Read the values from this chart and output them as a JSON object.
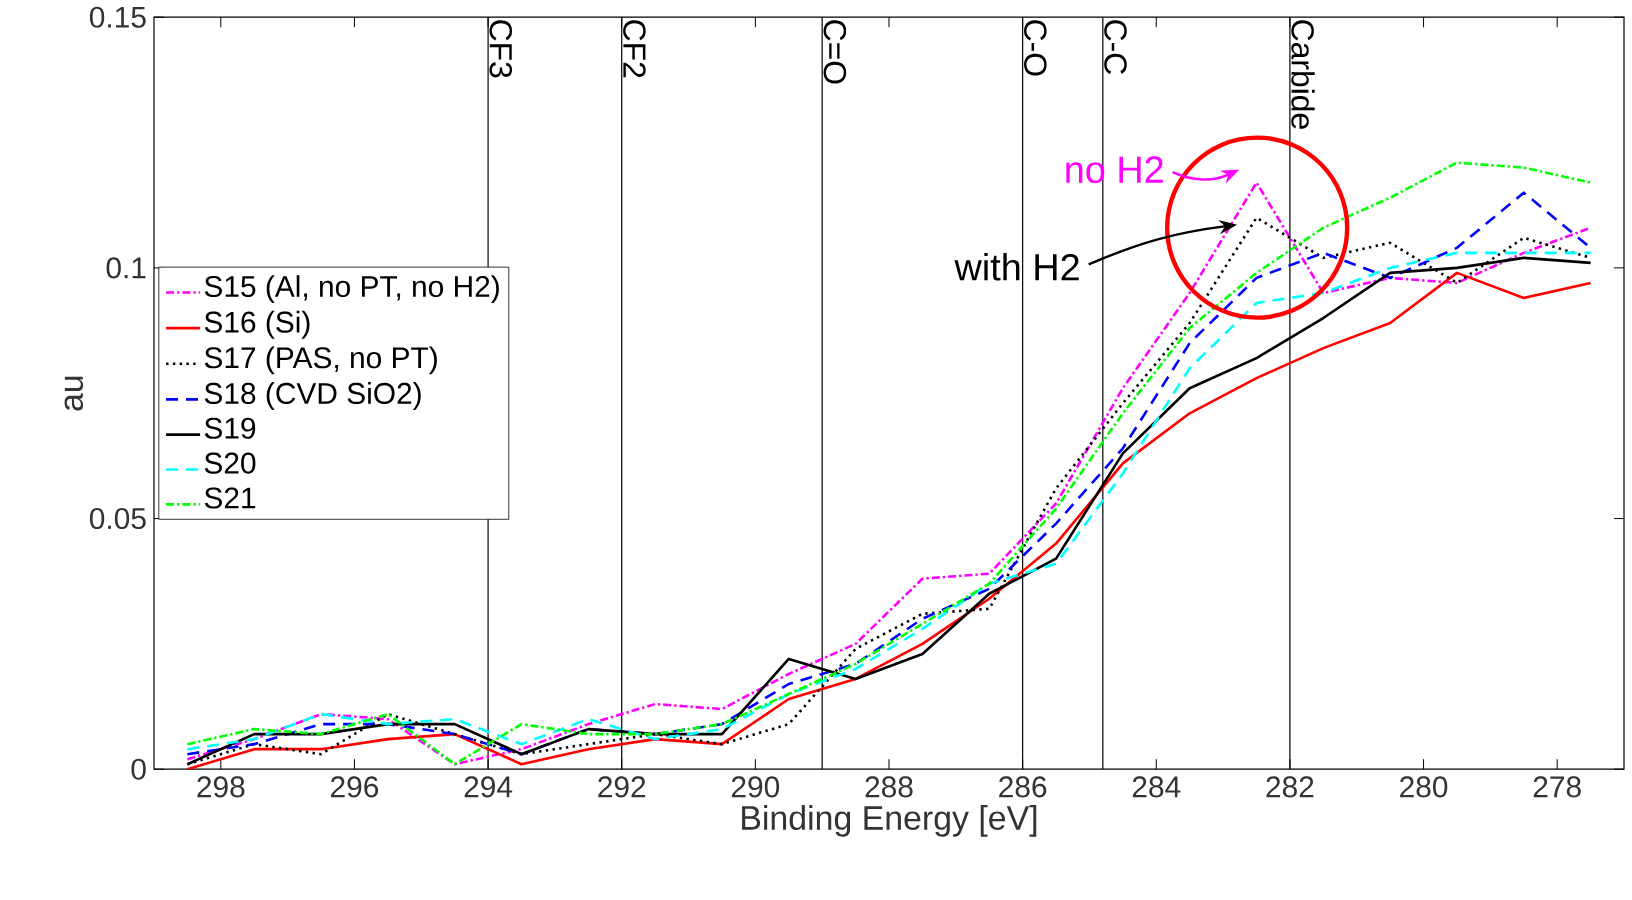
{
  "chart_data": {
    "type": "line",
    "xlabel": "Binding Energy [eV]",
    "ylabel": "au",
    "x": [
      298.5,
      297.5,
      296.5,
      295.5,
      294.5,
      293.5,
      292.5,
      291.5,
      290.5,
      289.5,
      288.5,
      287.5,
      286.5,
      285.5,
      284.5,
      283.5,
      282.5,
      281.5,
      280.5,
      279.5,
      278.5,
      277.5
    ],
    "series": [
      {
        "name": "S15 (Al, no PT, no H2)",
        "color": "#ff00ff",
        "line_style": "dashdot",
        "values": [
          0.002,
          0.006,
          0.011,
          0.01,
          0.001,
          0.004,
          0.009,
          0.013,
          0.012,
          0.019,
          0.025,
          0.038,
          0.039,
          0.053,
          0.076,
          0.095,
          0.117,
          0.095,
          0.098,
          0.097,
          0.103,
          0.108
        ]
      },
      {
        "name": "S16 (Si)",
        "color": "#ff0000",
        "line_style": "solid",
        "values": [
          0.0,
          0.004,
          0.004,
          0.006,
          0.007,
          0.001,
          0.004,
          0.006,
          0.005,
          0.014,
          0.018,
          0.025,
          0.034,
          0.045,
          0.061,
          0.071,
          0.078,
          0.084,
          0.089,
          0.099,
          0.094,
          0.097
        ]
      },
      {
        "name": "S17 (PAS, no PT)",
        "color": "#000000",
        "line_style": "dotted",
        "values": [
          0.001,
          0.005,
          0.003,
          0.011,
          0.007,
          0.003,
          0.005,
          0.007,
          0.005,
          0.009,
          0.024,
          0.031,
          0.032,
          0.056,
          0.073,
          0.089,
          0.11,
          0.102,
          0.105,
          0.097,
          0.106,
          0.102
        ]
      },
      {
        "name": "S18 (CVD SiO2)",
        "color": "#0000ff",
        "line_style": "dashed",
        "values": [
          0.003,
          0.005,
          0.009,
          0.009,
          0.007,
          0.003,
          0.008,
          0.007,
          0.009,
          0.017,
          0.021,
          0.03,
          0.036,
          0.049,
          0.064,
          0.085,
          0.098,
          0.103,
          0.098,
          0.104,
          0.115,
          0.104
        ]
      },
      {
        "name": "S19",
        "color": "#000000",
        "line_style": "solid",
        "values": [
          0.001,
          0.007,
          0.007,
          0.009,
          0.009,
          0.003,
          0.008,
          0.007,
          0.007,
          0.022,
          0.018,
          0.023,
          0.035,
          0.042,
          0.063,
          0.076,
          0.082,
          0.09,
          0.099,
          0.1,
          0.102,
          0.101
        ]
      },
      {
        "name": "S20",
        "color": "#00ffff",
        "line_style": "dashed",
        "values": [
          0.004,
          0.006,
          0.011,
          0.009,
          0.01,
          0.005,
          0.01,
          0.006,
          0.008,
          0.015,
          0.02,
          0.028,
          0.037,
          0.041,
          0.059,
          0.08,
          0.093,
          0.095,
          0.1,
          0.103,
          0.103,
          0.103
        ]
      },
      {
        "name": "S21",
        "color": "#00ff00",
        "line_style": "dashdot",
        "values": [
          0.005,
          0.008,
          0.007,
          0.011,
          0.001,
          0.009,
          0.007,
          0.007,
          0.009,
          0.015,
          0.021,
          0.029,
          0.037,
          0.052,
          0.071,
          0.088,
          0.099,
          0.108,
          0.114,
          0.121,
          0.12,
          0.117
        ]
      }
    ],
    "xlim": [
      299,
      277
    ],
    "xticks": [
      298,
      296,
      294,
      292,
      290,
      288,
      286,
      284,
      282,
      280,
      278
    ],
    "ylim": [
      0,
      0.15
    ],
    "yticks": [
      {
        "value": 0,
        "label": "0"
      },
      0.05,
      {
        "value": 0.1,
        "label": "0.1"
      },
      0.15
    ],
    "ref_lines": [
      {
        "axis": "x",
        "value": 294,
        "label": "CF3",
        "color": "#000000"
      },
      {
        "axis": "x",
        "value": 292,
        "label": "CF2",
        "color": "#000000"
      },
      {
        "axis": "x",
        "value": 289,
        "label": "C=O",
        "color": "#000000"
      },
      {
        "axis": "x",
        "value": 286,
        "label": "C-O",
        "color": "#000000"
      },
      {
        "axis": "x",
        "value": 284.8,
        "label": "C-C",
        "color": "#000000"
      },
      {
        "axis": "x",
        "value": 282,
        "label": "Carbide",
        "color": "#000000"
      }
    ],
    "annotations": [
      {
        "text": "no H2",
        "x": 282.4,
        "y": 0.118
      },
      {
        "text": "with H2",
        "x": 282.7,
        "y": 0.109
      }
    ],
    "legend": "left",
    "grid": false
  }
}
